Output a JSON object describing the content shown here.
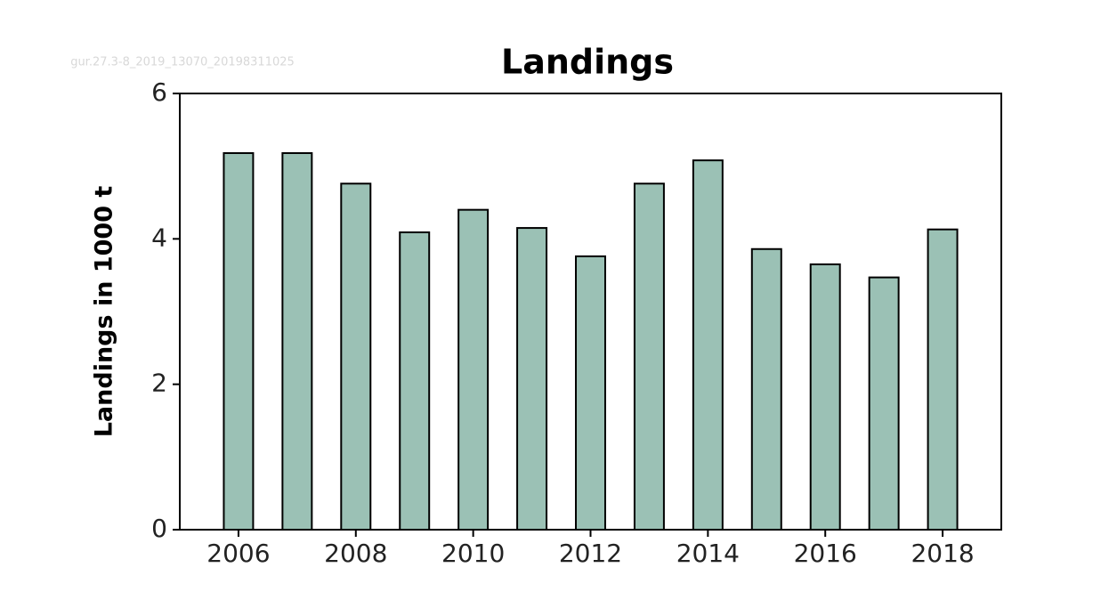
{
  "chart_data": {
    "type": "bar",
    "title": "Landings",
    "watermark": "gur.27.3-8_2019_13070_20198311025",
    "y_label": "Landings in 1000 t",
    "x": [
      2006,
      2007,
      2008,
      2009,
      2010,
      2011,
      2012,
      2013,
      2014,
      2015,
      2016,
      2017,
      2018
    ],
    "values": [
      5.18,
      5.18,
      4.76,
      4.09,
      4.4,
      4.15,
      3.76,
      4.76,
      5.08,
      3.86,
      3.65,
      3.47,
      4.13
    ],
    "color": "#9bc1b5",
    "xlim": [
      2005,
      2019
    ],
    "xticks": [
      2006,
      2008,
      2010,
      2012,
      2014,
      2016,
      2018
    ],
    "ylim": [
      0,
      6
    ],
    "yticks": [
      0,
      2,
      4,
      6
    ],
    "grid": false
  }
}
